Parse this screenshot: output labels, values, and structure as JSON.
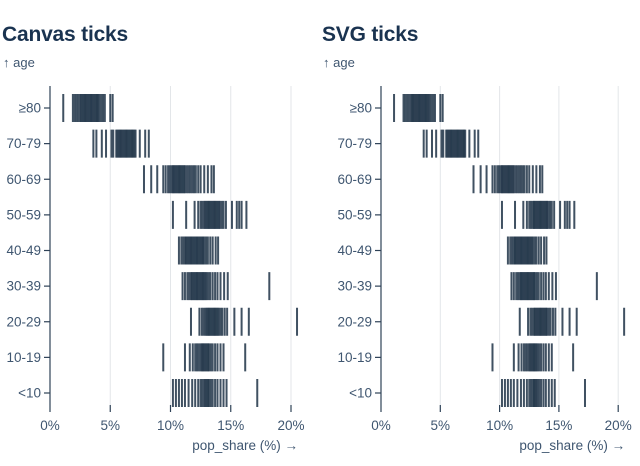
{
  "chart_data": {
    "type": "tick",
    "panels": [
      {
        "title": "Canvas ticks"
      },
      {
        "title": "SVG ticks"
      }
    ],
    "ylabel": "↑ age",
    "xlabel": "pop_share (%) →",
    "x_ticks": [
      "0%",
      "5%",
      "10%",
      "15%",
      "20%"
    ],
    "x_tick_values": [
      0,
      5,
      10,
      15,
      20
    ],
    "xlim": [
      0,
      21
    ],
    "grid": true,
    "legend": "none",
    "y_categories": [
      "≥80",
      "70-79",
      "60-69",
      "50-59",
      "40-49",
      "30-39",
      "20-29",
      "10-19",
      "<10"
    ],
    "rows": {
      "≥80": [
        1.1,
        1.9,
        2.05,
        2.2,
        2.35,
        2.5,
        2.6,
        2.7,
        2.8,
        2.9,
        3.0,
        3.1,
        3.2,
        3.3,
        3.4,
        3.5,
        3.6,
        3.7,
        3.8,
        3.9,
        4.0,
        4.1,
        4.25,
        4.4,
        4.55,
        5.0,
        5.2
      ],
      "70-79": [
        3.6,
        3.85,
        4.3,
        4.65,
        5.1,
        5.25,
        5.5,
        5.6,
        5.7,
        5.8,
        5.9,
        6.0,
        6.1,
        6.2,
        6.3,
        6.4,
        6.5,
        6.6,
        6.7,
        6.8,
        6.9,
        7.0,
        7.1,
        7.45,
        7.9,
        8.2
      ],
      "60-69": [
        7.8,
        8.4,
        8.9,
        9.4,
        9.6,
        9.8,
        9.95,
        10.1,
        10.2,
        10.3,
        10.4,
        10.5,
        10.6,
        10.7,
        10.8,
        10.9,
        11.0,
        11.1,
        11.2,
        11.35,
        11.5,
        11.65,
        11.8,
        11.95,
        12.1,
        12.3,
        12.5,
        12.8,
        13.1,
        13.4,
        13.6
      ],
      "50-59": [
        10.2,
        11.3,
        12.0,
        12.3,
        12.5,
        12.65,
        12.8,
        12.9,
        13.0,
        13.1,
        13.2,
        13.3,
        13.4,
        13.5,
        13.6,
        13.7,
        13.8,
        13.9,
        14.0,
        14.1,
        14.25,
        14.4,
        14.6,
        15.1,
        15.5,
        15.7,
        15.9,
        16.3
      ],
      "40-49": [
        10.7,
        10.9,
        11.05,
        11.2,
        11.3,
        11.4,
        11.5,
        11.6,
        11.7,
        11.8,
        11.9,
        12.0,
        12.1,
        12.2,
        12.3,
        12.4,
        12.5,
        12.6,
        12.7,
        12.8,
        12.95,
        13.1,
        13.3,
        13.5,
        13.75,
        13.95
      ],
      "30-39": [
        11.0,
        11.2,
        11.4,
        11.55,
        11.7,
        11.8,
        11.9,
        12.0,
        12.1,
        12.2,
        12.3,
        12.4,
        12.5,
        12.6,
        12.7,
        12.8,
        12.9,
        13.0,
        13.15,
        13.3,
        13.5,
        13.7,
        13.9,
        14.15,
        14.45,
        14.75,
        18.2
      ],
      "20-29": [
        11.7,
        12.4,
        12.6,
        12.75,
        12.9,
        13.0,
        13.1,
        13.2,
        13.3,
        13.4,
        13.5,
        13.6,
        13.7,
        13.8,
        13.9,
        14.0,
        14.15,
        14.3,
        14.5,
        14.7,
        15.3,
        15.9,
        16.5,
        20.5
      ],
      "10-19": [
        9.4,
        11.2,
        11.6,
        11.85,
        12.05,
        12.2,
        12.35,
        12.5,
        12.6,
        12.7,
        12.8,
        12.9,
        13.0,
        13.1,
        13.2,
        13.35,
        13.5,
        13.7,
        13.9,
        14.15,
        14.4,
        16.2
      ],
      "<10": [
        10.2,
        10.45,
        10.7,
        10.95,
        11.2,
        11.5,
        11.8,
        12.05,
        12.3,
        12.5,
        12.65,
        12.8,
        12.9,
        13.0,
        13.1,
        13.2,
        13.35,
        13.5,
        13.7,
        13.9,
        14.15,
        14.4,
        14.65,
        17.2
      ]
    },
    "colors": {
      "tick": "#1f3347",
      "grid": "#e3e6e9",
      "axis": "#2e4257",
      "label": "#3f5670",
      "title": "#1a3350",
      "background": "#ffffff"
    }
  }
}
